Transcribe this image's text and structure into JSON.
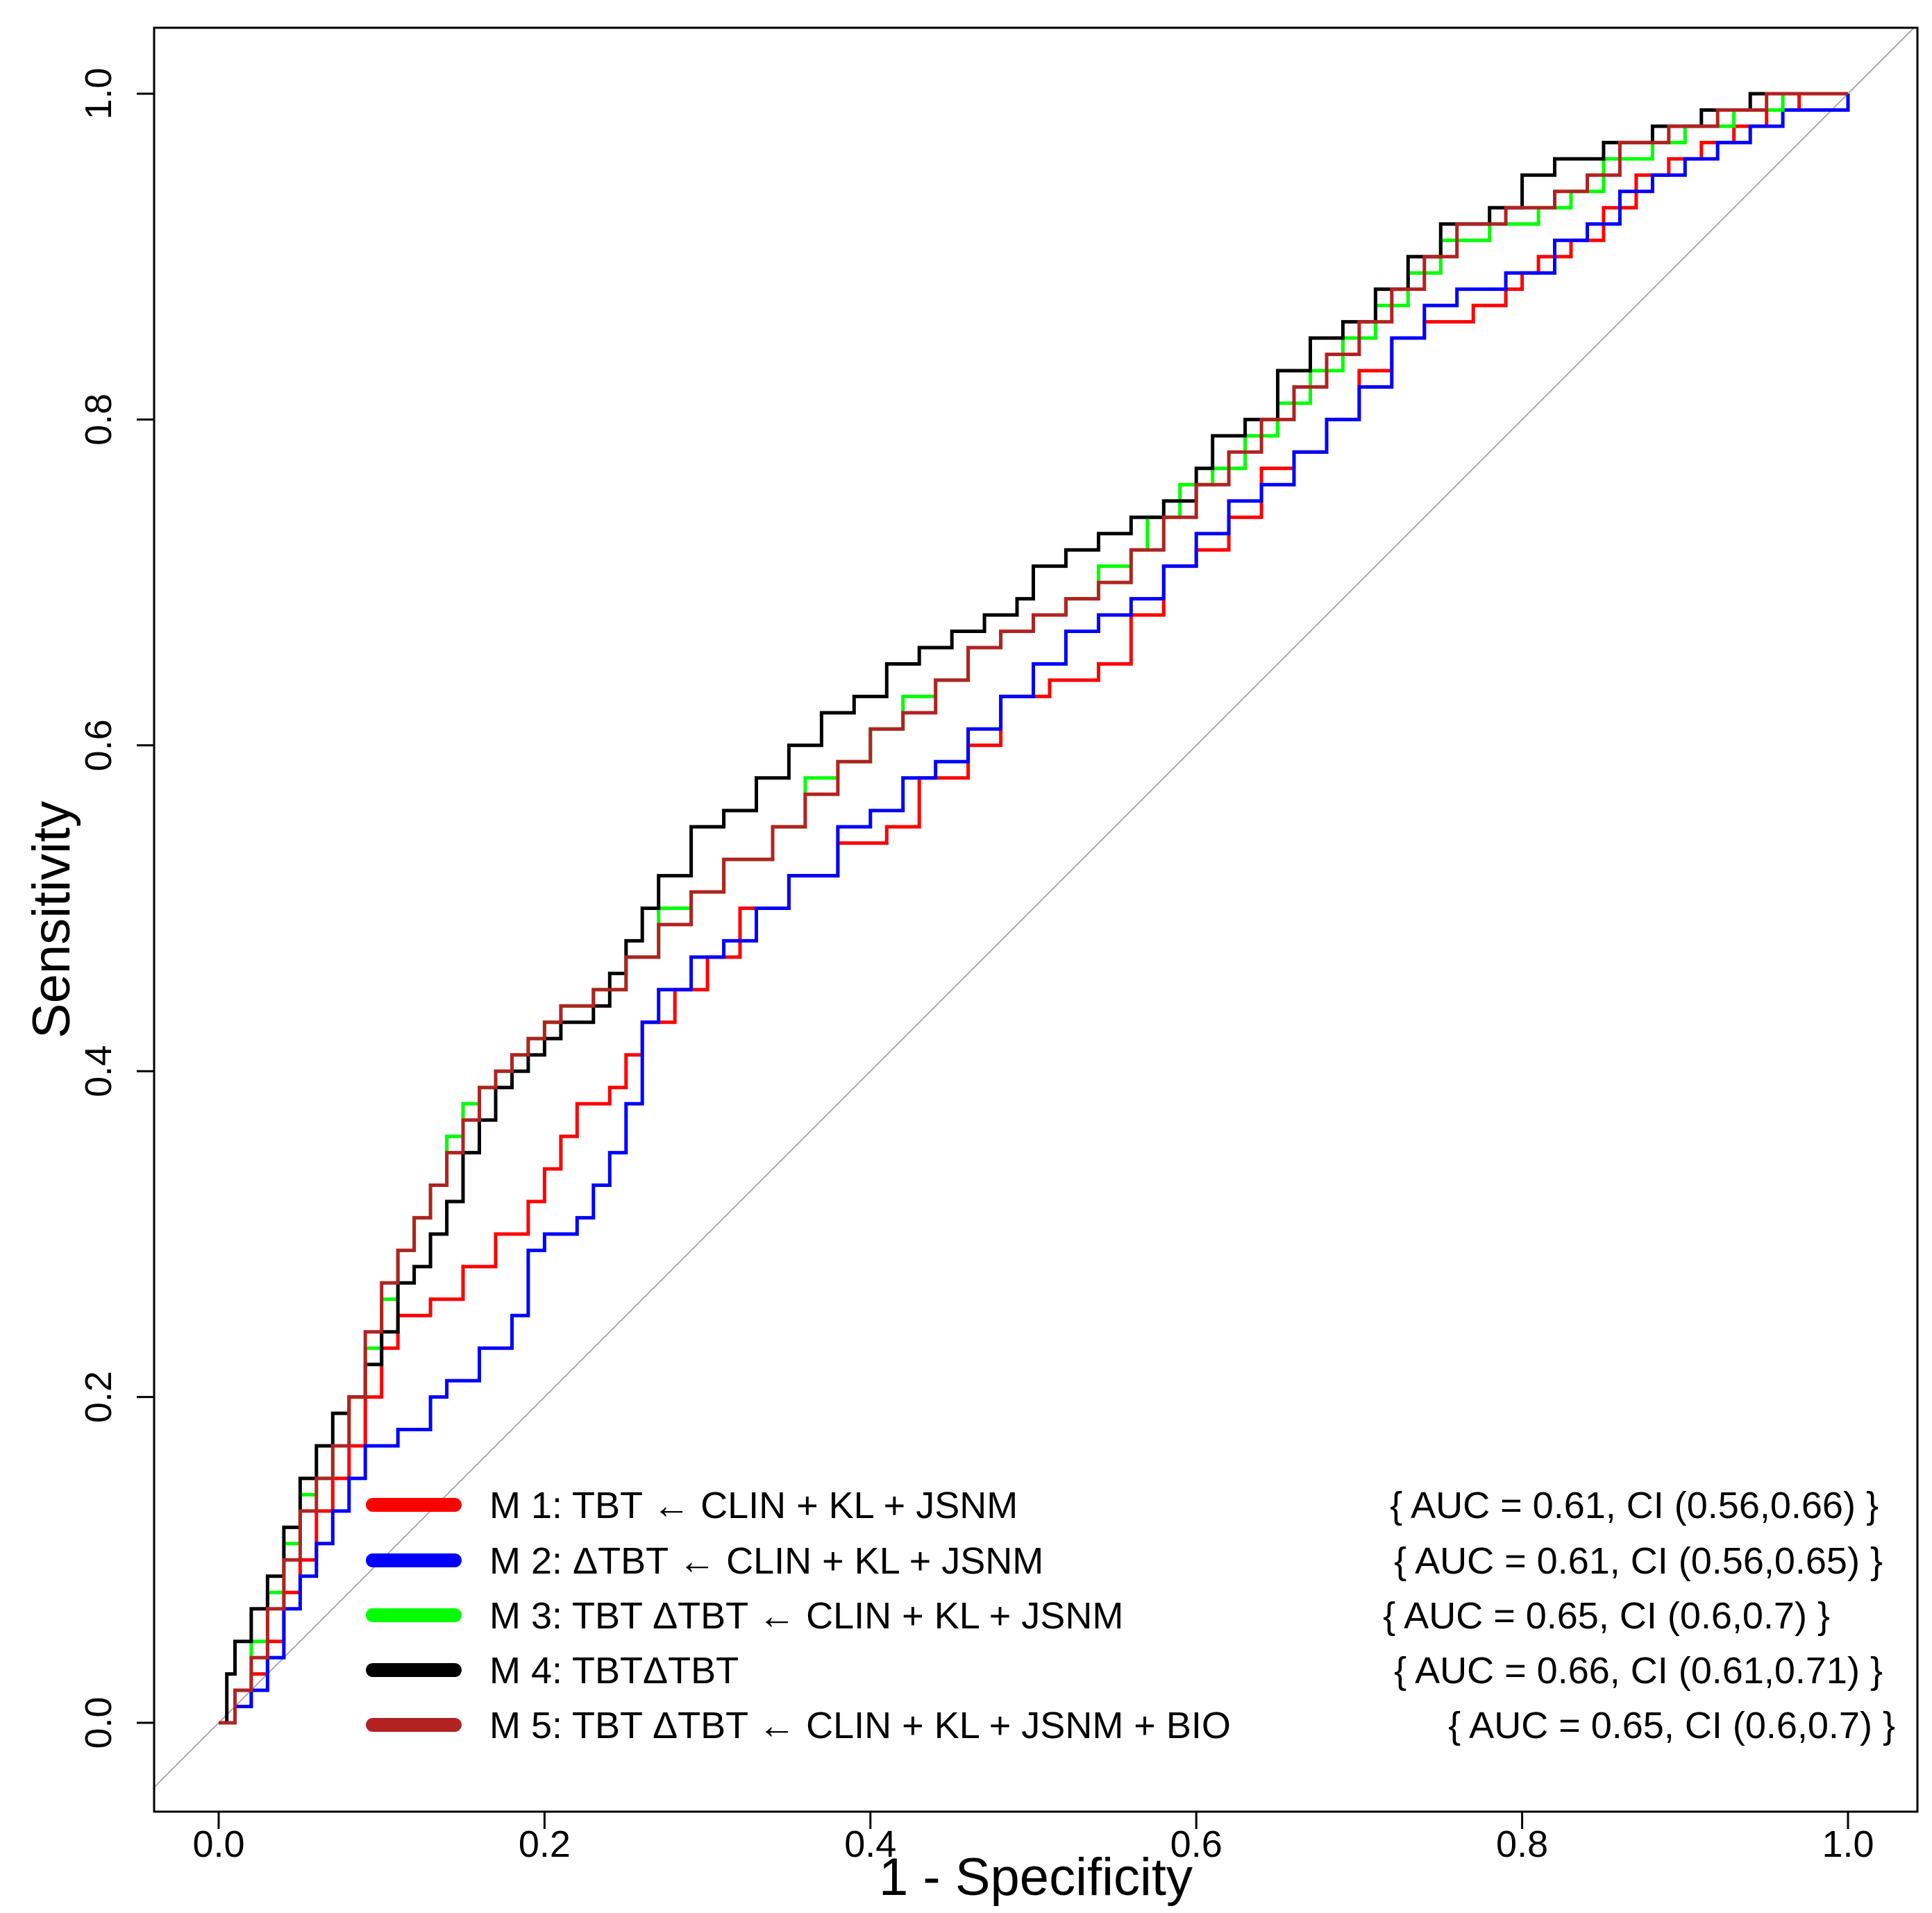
{
  "chart_data": {
    "type": "line",
    "title": "",
    "xlabel": "1 - Specificity",
    "ylabel": "Sensitivity",
    "xlim": [
      0,
      1
    ],
    "ylim": [
      0,
      1
    ],
    "x_ticks": [
      "0.0",
      "0.2",
      "0.4",
      "0.6",
      "0.8",
      "1.0"
    ],
    "y_ticks": [
      "0.0",
      "0.2",
      "0.4",
      "0.6",
      "0.8",
      "1.0"
    ],
    "reference_line": {
      "x": [
        0,
        1
      ],
      "y": [
        0,
        1
      ],
      "color": "#aaaaaa"
    },
    "legend_position": "bottom-right",
    "series": [
      {
        "name": "M 1: TBT ← CLIN + KL + JSNM",
        "auc_text": "{ AUC = 0.61, CI (0.56,0.66) }",
        "color": "#ff0000",
        "points": [
          [
            0,
            0
          ],
          [
            0.01,
            0.01
          ],
          [
            0.02,
            0.03
          ],
          [
            0.03,
            0.05
          ],
          [
            0.04,
            0.08
          ],
          [
            0.05,
            0.1
          ],
          [
            0.06,
            0.13
          ],
          [
            0.07,
            0.15
          ],
          [
            0.08,
            0.17
          ],
          [
            0.09,
            0.2
          ],
          [
            0.1,
            0.23
          ],
          [
            0.11,
            0.25
          ],
          [
            0.13,
            0.26
          ],
          [
            0.15,
            0.28
          ],
          [
            0.17,
            0.3
          ],
          [
            0.19,
            0.32
          ],
          [
            0.2,
            0.34
          ],
          [
            0.21,
            0.36
          ],
          [
            0.22,
            0.38
          ],
          [
            0.24,
            0.39
          ],
          [
            0.25,
            0.41
          ],
          [
            0.26,
            0.43
          ],
          [
            0.28,
            0.45
          ],
          [
            0.3,
            0.47
          ],
          [
            0.32,
            0.5
          ],
          [
            0.35,
            0.52
          ],
          [
            0.38,
            0.54
          ],
          [
            0.41,
            0.55
          ],
          [
            0.43,
            0.58
          ],
          [
            0.46,
            0.6
          ],
          [
            0.48,
            0.63
          ],
          [
            0.51,
            0.64
          ],
          [
            0.54,
            0.65
          ],
          [
            0.56,
            0.68
          ],
          [
            0.58,
            0.71
          ],
          [
            0.6,
            0.72
          ],
          [
            0.62,
            0.74
          ],
          [
            0.64,
            0.77
          ],
          [
            0.66,
            0.78
          ],
          [
            0.68,
            0.8
          ],
          [
            0.7,
            0.83
          ],
          [
            0.72,
            0.85
          ],
          [
            0.74,
            0.86
          ],
          [
            0.77,
            0.87
          ],
          [
            0.79,
            0.88
          ],
          [
            0.8,
            0.89
          ],
          [
            0.81,
            0.9
          ],
          [
            0.83,
            0.91
          ],
          [
            0.85,
            0.93
          ],
          [
            0.87,
            0.95
          ],
          [
            0.89,
            0.96
          ],
          [
            0.91,
            0.97
          ],
          [
            0.93,
            0.98
          ],
          [
            0.95,
            0.99
          ],
          [
            0.97,
            1.0
          ],
          [
            1.0,
            1.0
          ]
        ]
      },
      {
        "name": "M 2: ΔTBT ← CLIN + KL + JSNM",
        "auc_text": "{ AUC = 0.61, CI (0.56,0.65) }",
        "color": "#0000ff",
        "points": [
          [
            0,
            0
          ],
          [
            0.01,
            0.01
          ],
          [
            0.02,
            0.02
          ],
          [
            0.03,
            0.04
          ],
          [
            0.04,
            0.07
          ],
          [
            0.05,
            0.09
          ],
          [
            0.06,
            0.11
          ],
          [
            0.07,
            0.13
          ],
          [
            0.08,
            0.15
          ],
          [
            0.09,
            0.17
          ],
          [
            0.11,
            0.18
          ],
          [
            0.13,
            0.2
          ],
          [
            0.14,
            0.21
          ],
          [
            0.16,
            0.23
          ],
          [
            0.18,
            0.25
          ],
          [
            0.19,
            0.29
          ],
          [
            0.2,
            0.3
          ],
          [
            0.22,
            0.31
          ],
          [
            0.23,
            0.33
          ],
          [
            0.24,
            0.35
          ],
          [
            0.25,
            0.38
          ],
          [
            0.26,
            0.43
          ],
          [
            0.27,
            0.45
          ],
          [
            0.29,
            0.47
          ],
          [
            0.31,
            0.48
          ],
          [
            0.33,
            0.5
          ],
          [
            0.35,
            0.52
          ],
          [
            0.38,
            0.55
          ],
          [
            0.4,
            0.56
          ],
          [
            0.42,
            0.58
          ],
          [
            0.44,
            0.59
          ],
          [
            0.46,
            0.61
          ],
          [
            0.48,
            0.63
          ],
          [
            0.5,
            0.65
          ],
          [
            0.52,
            0.67
          ],
          [
            0.54,
            0.68
          ],
          [
            0.56,
            0.69
          ],
          [
            0.58,
            0.71
          ],
          [
            0.6,
            0.73
          ],
          [
            0.62,
            0.75
          ],
          [
            0.64,
            0.76
          ],
          [
            0.66,
            0.78
          ],
          [
            0.68,
            0.8
          ],
          [
            0.7,
            0.82
          ],
          [
            0.72,
            0.85
          ],
          [
            0.74,
            0.87
          ],
          [
            0.76,
            0.88
          ],
          [
            0.79,
            0.89
          ],
          [
            0.82,
            0.91
          ],
          [
            0.84,
            0.92
          ],
          [
            0.86,
            0.94
          ],
          [
            0.88,
            0.95
          ],
          [
            0.9,
            0.96
          ],
          [
            0.92,
            0.97
          ],
          [
            0.94,
            0.98
          ],
          [
            0.96,
            0.99
          ],
          [
            0.98,
            0.99
          ],
          [
            1.0,
            1.0
          ]
        ]
      },
      {
        "name": "M 3: TBT ΔTBT ← CLIN + KL + JSNM",
        "auc_text": "{ AUC = 0.65, CI (0.6,0.7) }",
        "color": "#00ff00",
        "points": [
          [
            0,
            0
          ],
          [
            0.01,
            0.02
          ],
          [
            0.02,
            0.05
          ],
          [
            0.03,
            0.08
          ],
          [
            0.04,
            0.11
          ],
          [
            0.05,
            0.14
          ],
          [
            0.06,
            0.15
          ],
          [
            0.07,
            0.17
          ],
          [
            0.08,
            0.2
          ],
          [
            0.09,
            0.23
          ],
          [
            0.1,
            0.26
          ],
          [
            0.11,
            0.29
          ],
          [
            0.12,
            0.31
          ],
          [
            0.13,
            0.33
          ],
          [
            0.14,
            0.36
          ],
          [
            0.15,
            0.38
          ],
          [
            0.16,
            0.39
          ],
          [
            0.17,
            0.4
          ],
          [
            0.18,
            0.41
          ],
          [
            0.19,
            0.42
          ],
          [
            0.2,
            0.43
          ],
          [
            0.21,
            0.44
          ],
          [
            0.23,
            0.45
          ],
          [
            0.25,
            0.47
          ],
          [
            0.27,
            0.5
          ],
          [
            0.29,
            0.51
          ],
          [
            0.31,
            0.53
          ],
          [
            0.34,
            0.55
          ],
          [
            0.36,
            0.58
          ],
          [
            0.38,
            0.59
          ],
          [
            0.4,
            0.61
          ],
          [
            0.42,
            0.63
          ],
          [
            0.44,
            0.64
          ],
          [
            0.46,
            0.66
          ],
          [
            0.48,
            0.67
          ],
          [
            0.5,
            0.68
          ],
          [
            0.52,
            0.69
          ],
          [
            0.54,
            0.71
          ],
          [
            0.56,
            0.72
          ],
          [
            0.57,
            0.74
          ],
          [
            0.59,
            0.76
          ],
          [
            0.61,
            0.77
          ],
          [
            0.63,
            0.79
          ],
          [
            0.65,
            0.81
          ],
          [
            0.67,
            0.83
          ],
          [
            0.69,
            0.85
          ],
          [
            0.71,
            0.87
          ],
          [
            0.73,
            0.89
          ],
          [
            0.75,
            0.91
          ],
          [
            0.78,
            0.92
          ],
          [
            0.81,
            0.93
          ],
          [
            0.83,
            0.94
          ],
          [
            0.85,
            0.96
          ],
          [
            0.88,
            0.97
          ],
          [
            0.9,
            0.98
          ],
          [
            0.93,
            0.99
          ],
          [
            0.96,
            1.0
          ],
          [
            1.0,
            1.0
          ]
        ]
      },
      {
        "name": "M 4: TBTΔTBT",
        "auc_text": "{ AUC = 0.66, CI (0.61,0.71) }",
        "color": "#000000",
        "points": [
          [
            0,
            0
          ],
          [
            0.005,
            0.03
          ],
          [
            0.01,
            0.05
          ],
          [
            0.02,
            0.07
          ],
          [
            0.03,
            0.09
          ],
          [
            0.04,
            0.12
          ],
          [
            0.05,
            0.15
          ],
          [
            0.06,
            0.17
          ],
          [
            0.07,
            0.19
          ],
          [
            0.08,
            0.2
          ],
          [
            0.09,
            0.22
          ],
          [
            0.1,
            0.24
          ],
          [
            0.11,
            0.27
          ],
          [
            0.12,
            0.28
          ],
          [
            0.13,
            0.3
          ],
          [
            0.14,
            0.32
          ],
          [
            0.15,
            0.35
          ],
          [
            0.16,
            0.37
          ],
          [
            0.17,
            0.39
          ],
          [
            0.18,
            0.4
          ],
          [
            0.19,
            0.41
          ],
          [
            0.2,
            0.42
          ],
          [
            0.21,
            0.43
          ],
          [
            0.23,
            0.44
          ],
          [
            0.24,
            0.46
          ],
          [
            0.25,
            0.48
          ],
          [
            0.26,
            0.5
          ],
          [
            0.27,
            0.52
          ],
          [
            0.29,
            0.55
          ],
          [
            0.31,
            0.56
          ],
          [
            0.33,
            0.58
          ],
          [
            0.35,
            0.6
          ],
          [
            0.37,
            0.62
          ],
          [
            0.39,
            0.63
          ],
          [
            0.41,
            0.65
          ],
          [
            0.43,
            0.66
          ],
          [
            0.45,
            0.67
          ],
          [
            0.47,
            0.68
          ],
          [
            0.49,
            0.69
          ],
          [
            0.5,
            0.71
          ],
          [
            0.52,
            0.72
          ],
          [
            0.54,
            0.73
          ],
          [
            0.56,
            0.74
          ],
          [
            0.58,
            0.75
          ],
          [
            0.6,
            0.77
          ],
          [
            0.61,
            0.79
          ],
          [
            0.63,
            0.8
          ],
          [
            0.65,
            0.83
          ],
          [
            0.67,
            0.85
          ],
          [
            0.69,
            0.86
          ],
          [
            0.71,
            0.88
          ],
          [
            0.73,
            0.9
          ],
          [
            0.75,
            0.92
          ],
          [
            0.78,
            0.93
          ],
          [
            0.8,
            0.95
          ],
          [
            0.82,
            0.96
          ],
          [
            0.85,
            0.97
          ],
          [
            0.88,
            0.98
          ],
          [
            0.91,
            0.99
          ],
          [
            0.94,
            1.0
          ],
          [
            1.0,
            1.0
          ]
        ]
      },
      {
        "name": "M 5: TBT ΔTBT ← CLIN + KL + JSNM + BIO",
        "auc_text": "{ AUC = 0.65, CI (0.6,0.7) }",
        "color": "#b22222",
        "points": [
          [
            0,
            0
          ],
          [
            0.01,
            0.02
          ],
          [
            0.02,
            0.04
          ],
          [
            0.03,
            0.07
          ],
          [
            0.04,
            0.1
          ],
          [
            0.05,
            0.13
          ],
          [
            0.06,
            0.15
          ],
          [
            0.07,
            0.17
          ],
          [
            0.08,
            0.2
          ],
          [
            0.09,
            0.24
          ],
          [
            0.1,
            0.27
          ],
          [
            0.11,
            0.29
          ],
          [
            0.12,
            0.31
          ],
          [
            0.13,
            0.33
          ],
          [
            0.14,
            0.35
          ],
          [
            0.15,
            0.37
          ],
          [
            0.16,
            0.39
          ],
          [
            0.17,
            0.4
          ],
          [
            0.18,
            0.41
          ],
          [
            0.19,
            0.42
          ],
          [
            0.2,
            0.43
          ],
          [
            0.21,
            0.44
          ],
          [
            0.23,
            0.45
          ],
          [
            0.25,
            0.47
          ],
          [
            0.27,
            0.49
          ],
          [
            0.29,
            0.51
          ],
          [
            0.31,
            0.53
          ],
          [
            0.34,
            0.55
          ],
          [
            0.36,
            0.57
          ],
          [
            0.38,
            0.59
          ],
          [
            0.4,
            0.61
          ],
          [
            0.42,
            0.62
          ],
          [
            0.44,
            0.64
          ],
          [
            0.46,
            0.66
          ],
          [
            0.48,
            0.67
          ],
          [
            0.5,
            0.68
          ],
          [
            0.52,
            0.69
          ],
          [
            0.54,
            0.7
          ],
          [
            0.56,
            0.72
          ],
          [
            0.58,
            0.74
          ],
          [
            0.6,
            0.76
          ],
          [
            0.62,
            0.78
          ],
          [
            0.64,
            0.8
          ],
          [
            0.66,
            0.82
          ],
          [
            0.68,
            0.84
          ],
          [
            0.7,
            0.86
          ],
          [
            0.72,
            0.88
          ],
          [
            0.74,
            0.9
          ],
          [
            0.76,
            0.92
          ],
          [
            0.79,
            0.93
          ],
          [
            0.82,
            0.94
          ],
          [
            0.84,
            0.95
          ],
          [
            0.86,
            0.97
          ],
          [
            0.89,
            0.98
          ],
          [
            0.92,
            0.99
          ],
          [
            0.95,
            1.0
          ],
          [
            1.0,
            1.0
          ]
        ]
      }
    ]
  }
}
